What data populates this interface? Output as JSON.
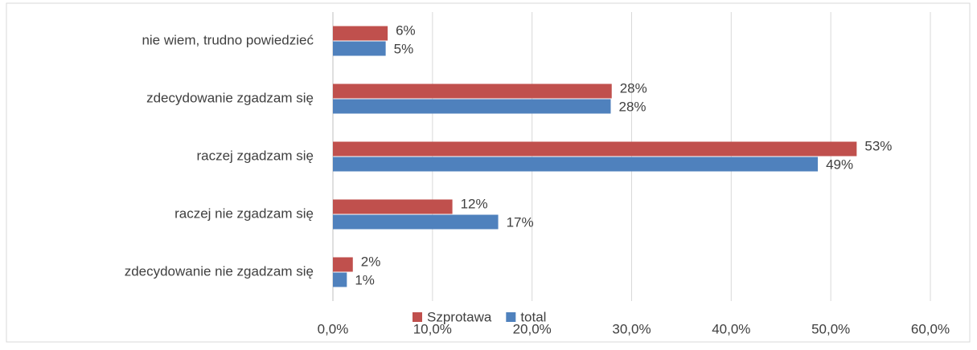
{
  "chart_data": {
    "type": "bar",
    "orientation": "horizontal",
    "categories": [
      "nie wiem, trudno powiedzieć",
      "zdecydowanie zgadzam się",
      "raczej zgadzam się",
      "raczej nie zgadzam się",
      "zdecydowanie nie zgadzam się"
    ],
    "series": [
      {
        "name": "Szprotawa",
        "color": "#c0504d",
        "values": [
          5.5,
          28.0,
          52.6,
          12.0,
          2.0
        ],
        "value_labels": [
          "6%",
          "28%",
          "53%",
          "12%",
          "2%"
        ]
      },
      {
        "name": "total",
        "color": "#4f81bd",
        "values": [
          5.3,
          27.9,
          48.7,
          16.6,
          1.4
        ],
        "value_labels": [
          "5%",
          "28%",
          "49%",
          "17%",
          "1%"
        ]
      }
    ],
    "xlim": [
      0,
      60
    ],
    "xticks": [
      {
        "value": 0,
        "label": "0,0%"
      },
      {
        "value": 10,
        "label": "10,0%"
      },
      {
        "value": 20,
        "label": "20,0%"
      },
      {
        "value": 30,
        "label": "30,0%"
      },
      {
        "value": 40,
        "label": "40,0%"
      },
      {
        "value": 50,
        "label": "50,0%"
      },
      {
        "value": 60,
        "label": "60,0%"
      }
    ],
    "grid": true,
    "legend": "bottom"
  }
}
